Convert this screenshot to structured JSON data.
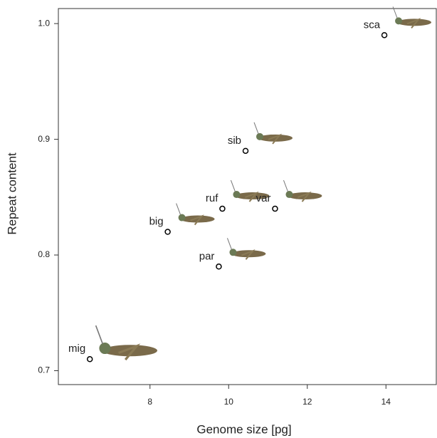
{
  "chart_data": {
    "type": "scatter",
    "x_label": "Genome size [pg]",
    "y_label": "Repeat content",
    "labels": [
      "mig",
      "big",
      "par",
      "ruf",
      "sib",
      "var",
      "sca"
    ],
    "x": [
      6.47,
      8.45,
      9.75,
      9.84,
      10.43,
      11.18,
      13.96
    ],
    "values": [
      0.71,
      0.82,
      0.79,
      0.84,
      0.89,
      0.84,
      0.99
    ],
    "color": "#000000",
    "xlim": [
      5.67,
      15.28
    ],
    "ylim": [
      0.688,
      1.013
    ],
    "xticks": [
      8,
      10,
      12,
      14
    ],
    "yticks": [
      0.7,
      0.8,
      0.9,
      {
        "value": 1.0,
        "label": "1.0"
      }
    ],
    "grid": false
  }
}
